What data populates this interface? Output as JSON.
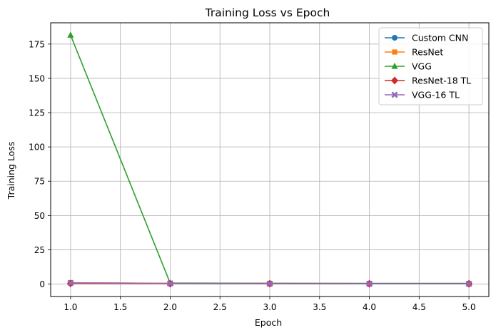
{
  "chart_data": {
    "type": "line",
    "title": "Training Loss vs Epoch",
    "xlabel": "Epoch",
    "ylabel": "Training Loss",
    "x": [
      1,
      2,
      3,
      4,
      5
    ],
    "xlim": [
      0.8,
      5.2
    ],
    "ylim": [
      -9.07,
      190.5
    ],
    "xticks": [
      1.0,
      1.5,
      2.0,
      2.5,
      3.0,
      3.5,
      4.0,
      4.5,
      5.0
    ],
    "xtick_labels": [
      "1.0",
      "1.5",
      "2.0",
      "2.5",
      "3.0",
      "3.5",
      "4.0",
      "4.5",
      "5.0"
    ],
    "yticks": [
      0,
      25,
      50,
      75,
      100,
      125,
      150,
      175
    ],
    "ytick_labels": [
      "0",
      "25",
      "50",
      "75",
      "100",
      "125",
      "150",
      "175"
    ],
    "grid": true,
    "legend_position": "top-right",
    "series": [
      {
        "name": "Custom CNN",
        "values": [
          0.9,
          0.5,
          0.4,
          0.3,
          0.3
        ],
        "color": "#1f77b4",
        "marker": "circle"
      },
      {
        "name": "ResNet",
        "values": [
          1.0,
          0.6,
          0.5,
          0.4,
          0.4
        ],
        "color": "#ff7f0e",
        "marker": "square"
      },
      {
        "name": "VGG",
        "values": [
          181.5,
          0.7,
          0.6,
          0.5,
          0.5
        ],
        "color": "#2ca02c",
        "marker": "triangle"
      },
      {
        "name": "ResNet-18 TL",
        "values": [
          0.5,
          0.3,
          0.3,
          0.2,
          0.2
        ],
        "color": "#d62728",
        "marker": "diamond"
      },
      {
        "name": "VGG-16 TL",
        "values": [
          0.8,
          0.4,
          0.3,
          0.2,
          0.2
        ],
        "color": "#9467bd",
        "marker": "x"
      }
    ]
  }
}
